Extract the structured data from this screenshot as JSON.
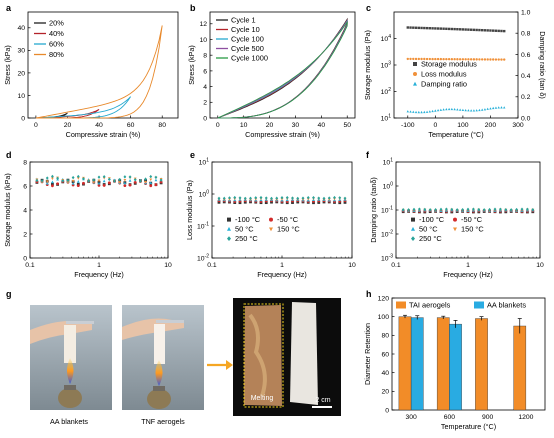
{
  "panel_labels": {
    "a": "a",
    "b": "b",
    "c": "c",
    "d": "d",
    "e": "e",
    "f": "f",
    "g": "g",
    "h": "h"
  },
  "photos": {
    "label_left": "AA blankets",
    "label_mid": "TNF aerogels",
    "melting": "Melting",
    "scale": "2 cm"
  },
  "chart_data": [
    {
      "panel": "a",
      "type": "line",
      "xlabel": "Compressive strain (%)",
      "ylabel": "Stress (kPa)",
      "xlim": [
        -5,
        90
      ],
      "ylim": [
        0,
        47
      ],
      "xticks": [
        0,
        20,
        40,
        60,
        80
      ],
      "yticks": [
        0,
        10,
        20,
        30,
        40
      ],
      "legend": "top-left",
      "series": [
        {
          "name": "20%",
          "color": "#202020",
          "max": 20,
          "peak": 2.2,
          "k": 5
        },
        {
          "name": "40%",
          "color": "#b4232a",
          "max": 40,
          "peak": 3.8,
          "k": 5
        },
        {
          "name": "60%",
          "color": "#27a9cf",
          "max": 60,
          "peak": 9.5,
          "k": 6
        },
        {
          "name": "80%",
          "color": "#e8892b",
          "max": 80,
          "peak": 41,
          "k": 9
        }
      ]
    },
    {
      "panel": "b",
      "type": "line",
      "xlabel": "Compressive strain (%)",
      "ylabel": "Stress (kPa)",
      "xlim": [
        -3,
        53
      ],
      "ylim": [
        0,
        13.5
      ],
      "xticks": [
        0,
        10,
        20,
        30,
        40,
        50
      ],
      "yticks": [
        0,
        2,
        4,
        6,
        8,
        10,
        12
      ],
      "legend": "top-left",
      "series": [
        {
          "name": "Cycle 1",
          "color": "#202020",
          "peak": 12.6
        },
        {
          "name": "Cycle 10",
          "color": "#b4232a",
          "peak": 12.5
        },
        {
          "name": "Cycle 100",
          "color": "#27a9cf",
          "peak": 12.4
        },
        {
          "name": "Cycle 500",
          "color": "#8e4fa0",
          "peak": 12.3
        },
        {
          "name": "Cycle 1000",
          "color": "#2a9a45",
          "peak": 12.2
        }
      ]
    },
    {
      "panel": "c",
      "type": "scatter",
      "xlabel": "Temperature (°C)",
      "ylabel": "Storage modulus (Pa)",
      "y2label": "Damping ratio (tan δ)",
      "xlim": [
        -150,
        300
      ],
      "ylim_log": [
        1,
        5
      ],
      "y2lim": [
        0,
        1.0
      ],
      "xticks": [
        -100,
        0,
        100,
        200,
        300
      ],
      "yticks_exp": [
        1,
        2,
        3,
        4
      ],
      "y2ticks": [
        0.0,
        0.2,
        0.4,
        0.6,
        0.8,
        1.0
      ],
      "legend": "center-right",
      "series": [
        {
          "name": "Storage modulus",
          "color": "#444444",
          "marker": "square",
          "from": 26000,
          "to": 19000
        },
        {
          "name": "Loss modulus",
          "color": "#f0913a",
          "marker": "circle",
          "from": 1700,
          "to": 1600
        },
        {
          "name": "Damping ratio",
          "color": "#27b0d8",
          "marker": "triangle",
          "from": 0.06,
          "to": 0.09
        }
      ]
    },
    {
      "panel": "d",
      "type": "scatter",
      "xlabel": "Frequency (Hz)",
      "ylabel": "Storage modulus (kPa)",
      "xlim_log": [
        -1,
        1
      ],
      "ylim": [
        0,
        8
      ],
      "xticks_labels": [
        "0.1",
        "1",
        "10"
      ],
      "yticks": [
        0,
        2,
        4,
        6,
        8
      ],
      "legend": "none",
      "series": [
        {
          "name": "-100 °C",
          "color": "#333333",
          "value": 6.3
        },
        {
          "name": "-50 °C",
          "color": "#d22a2a",
          "value": 6.2
        },
        {
          "name": "50 °C",
          "color": "#27b0d8",
          "value": 6.4
        },
        {
          "name": "150 °C",
          "color": "#f0913a",
          "value": 6.5
        },
        {
          "name": "250 °C",
          "color": "#2aa39a",
          "value": 6.6
        }
      ]
    },
    {
      "panel": "e",
      "type": "scatter",
      "xlabel": "Frequency (Hz)",
      "ylabel": "Loss modulus (Pa)",
      "xlim_log": [
        -1,
        1
      ],
      "ylim_log": [
        -2,
        1
      ],
      "xticks_labels": [
        "0.1",
        "1",
        "10"
      ],
      "yticks_exp": [
        -2,
        -1,
        0,
        1
      ],
      "legend": "bottom",
      "series": [
        {
          "name": "-100 °C",
          "color": "#333333",
          "value": 0.55
        },
        {
          "name": "-50 °C",
          "color": "#d22a2a",
          "value": 0.6
        },
        {
          "name": "50 °C",
          "color": "#27b0d8",
          "value": 0.65
        },
        {
          "name": "150 °C",
          "color": "#f0913a",
          "value": 0.7
        },
        {
          "name": "250 °C",
          "color": "#2aa39a",
          "value": 0.75
        }
      ]
    },
    {
      "panel": "f",
      "type": "scatter",
      "xlabel": "Frequency (Hz)",
      "ylabel": "Damping ratio (tanδ)",
      "xlim_log": [
        -1,
        1
      ],
      "ylim_log": [
        -3,
        1
      ],
      "xticks_labels": [
        "0.1",
        "1",
        "10"
      ],
      "yticks_exp": [
        -3,
        -2,
        -1,
        0,
        1
      ],
      "legend": "bottom",
      "series": [
        {
          "name": "-100 °C",
          "color": "#333333",
          "value": 0.085
        },
        {
          "name": "-50 °C",
          "color": "#d22a2a",
          "value": 0.09
        },
        {
          "name": "50 °C",
          "color": "#27b0d8",
          "value": 0.095
        },
        {
          "name": "150 °C",
          "color": "#f0913a",
          "value": 0.1
        },
        {
          "name": "250 °C",
          "color": "#2aa39a",
          "value": 0.105
        }
      ]
    },
    {
      "panel": "h",
      "type": "bar",
      "xlabel": "Temperature (°C)",
      "ylabel": "Diameter Retention",
      "categories": [
        "300",
        "600",
        "900",
        "1200"
      ],
      "ylim": [
        0,
        120
      ],
      "yticks": [
        0,
        20,
        40,
        60,
        80,
        100,
        120
      ],
      "legend": "top",
      "series": [
        {
          "name": "TAI aerogels",
          "color": "#f28c28",
          "values": [
            100,
            99,
            98,
            90
          ],
          "errors": [
            1.5,
            1.5,
            2,
            8
          ]
        },
        {
          "name": "AA blankets",
          "color": "#29abe2",
          "values": [
            99,
            92,
            null,
            null
          ],
          "errors": [
            2,
            4,
            null,
            null
          ]
        }
      ]
    }
  ]
}
